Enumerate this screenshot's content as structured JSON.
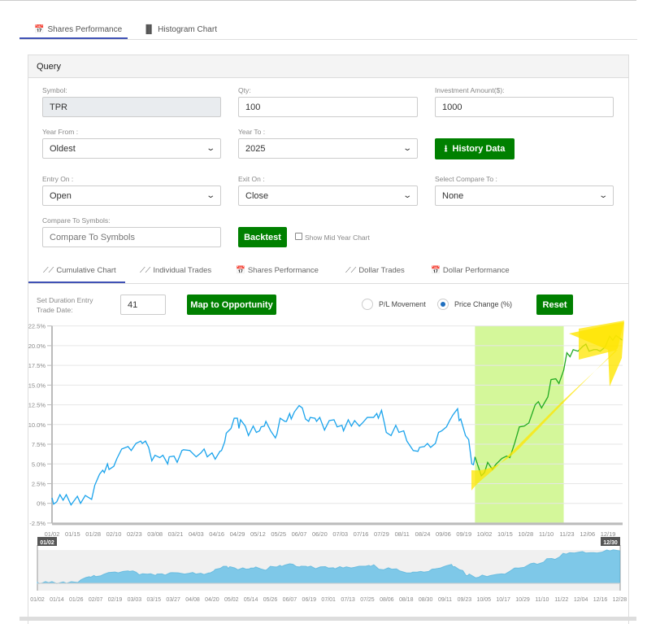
{
  "top_tabs": [
    {
      "label": "Shares Performance",
      "icon": "calendar-icon",
      "active": true
    },
    {
      "label": "Histogram Chart",
      "icon": "bar-chart-icon",
      "active": false
    }
  ],
  "query": {
    "title": "Query",
    "symbol": {
      "label": "Symbol:",
      "value": "TPR"
    },
    "qty": {
      "label": "Qty:",
      "value": "100"
    },
    "investment": {
      "label": "Investment Amount($):",
      "value": "1000"
    },
    "year_from": {
      "label": "Year From :",
      "value": "Oldest"
    },
    "year_to": {
      "label": "Year To :",
      "value": "2025"
    },
    "history_button": "History Data",
    "entry_on": {
      "label": "Entry On :",
      "value": "Open"
    },
    "exit_on": {
      "label": "Exit On :",
      "value": "Close"
    },
    "compare_to": {
      "label": "Select Compare To :",
      "value": "None"
    },
    "compare_symbols": {
      "label": "Compare To Symbols:",
      "placeholder": "Compare To Symbols"
    },
    "backtest_button": "Backtest",
    "mid_year_checkbox": {
      "label": "Show Mid Year Chart",
      "checked": false
    }
  },
  "chart_tabs": [
    {
      "label": "Cumulative Chart",
      "icon": "line-chart-icon",
      "active": true
    },
    {
      "label": "Individual Trades",
      "icon": "line-chart-icon"
    },
    {
      "label": "Shares Performance",
      "icon": "calendar-icon"
    },
    {
      "label": "Dollar Trades",
      "icon": "line-chart-icon"
    },
    {
      "label": "Dollar Performance",
      "icon": "calendar-icon"
    }
  ],
  "controls": {
    "duration_label_1": "Set Duration Entry",
    "duration_label_2": "Trade Date:",
    "duration_value": "41",
    "map_button": "Map to Opportunity",
    "radio_pl": "P/L Movement",
    "radio_price": "Price Change (%)",
    "selected": "Price Change (%)",
    "reset_button": "Reset"
  },
  "chart_data": {
    "type": "line",
    "year": 2025,
    "yticks": [
      "22.5%",
      "20.0%",
      "17.5%",
      "15.0%",
      "12.5%",
      "10.0%",
      "7.5%",
      "5.0%",
      "2.5%",
      "0%",
      "-2.5%"
    ],
    "ylim": [
      -2.5,
      22.5
    ],
    "xticks": [
      "01/02",
      "01/15",
      "01/28",
      "02/10",
      "02/23",
      "03/08",
      "03/21",
      "04/03",
      "04/16",
      "04/29",
      "05/12",
      "05/25",
      "06/07",
      "06/20",
      "07/03",
      "07/16",
      "07/29",
      "08/11",
      "08/24",
      "09/06",
      "09/19",
      "10/02",
      "10/15",
      "10/28",
      "11/10",
      "11/23",
      "12/06",
      "12/19"
    ],
    "navigator_ticks": [
      "01/02",
      "01/14",
      "01/26",
      "02/07",
      "02/19",
      "03/03",
      "03/15",
      "03/27",
      "04/08",
      "04/20",
      "05/02",
      "05/14",
      "05/26",
      "06/07",
      "06/19",
      "07/01",
      "07/13",
      "07/25",
      "08/06",
      "08/18",
      "08/30",
      "09/11",
      "09/23",
      "10/05",
      "10/17",
      "10/29",
      "11/10",
      "11/22",
      "12/04",
      "12/16",
      "12/28"
    ],
    "navigator_range": [
      "01/02",
      "12/30"
    ],
    "highlight_range": [
      "09/26",
      "11/21"
    ],
    "colors": {
      "line": "#1aa3ec",
      "highlight_line": "#22aa22",
      "highlight_band": "#d4f79a",
      "arrow": "#ffe600",
      "area": "#7ec8e8"
    },
    "series": [
      [
        "01/02",
        0.7
      ],
      [
        "01/03",
        -0.1
      ],
      [
        "01/05",
        0.2
      ],
      [
        "01/07",
        1.1
      ],
      [
        "01/09",
        0.4
      ],
      [
        "01/11",
        1.1
      ],
      [
        "01/14",
        -0.2
      ],
      [
        "01/18",
        0.9
      ],
      [
        "01/20",
        0
      ],
      [
        "01/23",
        1.0
      ],
      [
        "01/27",
        0.5
      ],
      [
        "01/29",
        2.3
      ],
      [
        "02/01",
        3.7
      ],
      [
        "02/03",
        4.2
      ],
      [
        "02/04",
        3.9
      ],
      [
        "02/06",
        5.0
      ],
      [
        "02/07",
        4.3
      ],
      [
        "02/10",
        4.7
      ],
      [
        "02/12",
        5.7
      ],
      [
        "02/15",
        6.9
      ],
      [
        "02/19",
        7.2
      ],
      [
        "02/21",
        6.7
      ],
      [
        "02/24",
        7.6
      ],
      [
        "02/27",
        7.9
      ],
      [
        "02/28",
        7.6
      ],
      [
        "03/02",
        7.9
      ],
      [
        "03/04",
        7.1
      ],
      [
        "03/06",
        5.4
      ],
      [
        "03/08",
        6.1
      ],
      [
        "03/11",
        5.8
      ],
      [
        "03/13",
        6.1
      ],
      [
        "03/16",
        5.0
      ],
      [
        "03/17",
        5.9
      ],
      [
        "03/20",
        6.0
      ],
      [
        "03/22",
        5.2
      ],
      [
        "03/25",
        6.7
      ],
      [
        "03/26",
        6.8
      ],
      [
        "03/30",
        6.7
      ],
      [
        "04/03",
        5.9
      ],
      [
        "04/06",
        6.4
      ],
      [
        "04/08",
        6.9
      ],
      [
        "04/10",
        5.9
      ],
      [
        "04/13",
        6.4
      ],
      [
        "04/15",
        5.6
      ],
      [
        "04/18",
        6.6
      ],
      [
        "04/19",
        6.7
      ],
      [
        "04/21",
        7.8
      ],
      [
        "04/22",
        8.9
      ],
      [
        "04/25",
        9.5
      ],
      [
        "04/27",
        10.8
      ],
      [
        "04/29",
        10.8
      ],
      [
        "04/30",
        9.5
      ],
      [
        "05/01",
        10.6
      ],
      [
        "05/04",
        9.8
      ],
      [
        "05/06",
        8.6
      ],
      [
        "05/09",
        9.8
      ],
      [
        "05/11",
        9.0
      ],
      [
        "05/13",
        9.2
      ],
      [
        "05/14",
        9.7
      ],
      [
        "05/16",
        9.8
      ],
      [
        "05/17",
        10.4
      ],
      [
        "05/20",
        9.2
      ],
      [
        "05/23",
        8.3
      ],
      [
        "05/24",
        8.8
      ],
      [
        "05/26",
        10.8
      ],
      [
        "05/29",
        10.4
      ],
      [
        "05/30",
        10.4
      ],
      [
        "06/01",
        11.4
      ],
      [
        "06/02",
        10.7
      ],
      [
        "06/04",
        11.6
      ],
      [
        "06/07",
        12.4
      ],
      [
        "06/09",
        12.1
      ],
      [
        "06/11",
        10.7
      ],
      [
        "06/13",
        10.4
      ],
      [
        "06/14",
        10.9
      ],
      [
        "06/17",
        10.8
      ],
      [
        "06/18",
        10.4
      ],
      [
        "06/20",
        10.9
      ],
      [
        "06/23",
        9.3
      ],
      [
        "06/26",
        10.5
      ],
      [
        "06/29",
        10.6
      ],
      [
        "07/01",
        9.7
      ],
      [
        "07/04",
        9.9
      ],
      [
        "07/05",
        9.2
      ],
      [
        "07/08",
        10.6
      ],
      [
        "07/10",
        9.8
      ],
      [
        "07/12",
        10.5
      ],
      [
        "07/15",
        9.8
      ],
      [
        "07/17",
        10.2
      ],
      [
        "07/20",
        10.9
      ],
      [
        "07/24",
        10.9
      ],
      [
        "07/26",
        11.4
      ],
      [
        "07/27",
        10.8
      ],
      [
        "07/29",
        11.8
      ],
      [
        "07/31",
        10.0
      ],
      [
        "08/01",
        9.0
      ],
      [
        "08/04",
        8.6
      ],
      [
        "08/07",
        9.9
      ],
      [
        "08/09",
        9.0
      ],
      [
        "08/12",
        9.2
      ],
      [
        "08/14",
        7.9
      ],
      [
        "08/18",
        6.7
      ],
      [
        "08/21",
        6.6
      ],
      [
        "08/22",
        7.1
      ],
      [
        "08/25",
        7.2
      ],
      [
        "08/27",
        7.6
      ],
      [
        "08/29",
        7.1
      ],
      [
        "09/01",
        7.6
      ],
      [
        "09/03",
        9.0
      ],
      [
        "09/05",
        9.2
      ],
      [
        "09/08",
        9.7
      ],
      [
        "09/10",
        10.5
      ],
      [
        "09/12",
        11.2
      ],
      [
        "09/15",
        12.0
      ],
      [
        "09/16",
        10.5
      ],
      [
        "09/17",
        10.7
      ],
      [
        "09/20",
        8.6
      ],
      [
        "09/22",
        8.1
      ],
      [
        "09/24",
        5.0
      ],
      [
        "09/25",
        4.9
      ],
      [
        "09/26",
        5.9
      ],
      [
        "09/30",
        3.5
      ],
      [
        "10/02",
        3.9
      ],
      [
        "10/04",
        5.2
      ],
      [
        "10/07",
        4.3
      ],
      [
        "10/09",
        4.9
      ],
      [
        "10/13",
        5.7
      ],
      [
        "10/16",
        6.0
      ],
      [
        "10/18",
        5.8
      ],
      [
        "10/21",
        7.6
      ],
      [
        "10/24",
        9.7
      ],
      [
        "10/27",
        9.8
      ],
      [
        "10/30",
        10.2
      ],
      [
        "11/03",
        12.5
      ],
      [
        "11/05",
        12.9
      ],
      [
        "11/07",
        12.1
      ],
      [
        "11/11",
        13.5
      ],
      [
        "11/13",
        15.7
      ],
      [
        "11/16",
        15.8
      ],
      [
        "11/18",
        15.2
      ],
      [
        "11/21",
        16.9
      ],
      [
        "11/23",
        19.1
      ],
      [
        "11/25",
        18.6
      ],
      [
        "11/27",
        19.5
      ],
      [
        "11/30",
        19.3
      ],
      [
        "12/03",
        19.9
      ],
      [
        "12/05",
        20.2
      ],
      [
        "12/07",
        19.3
      ],
      [
        "12/10",
        19.5
      ],
      [
        "12/12",
        19.5
      ],
      [
        "12/14",
        19.3
      ],
      [
        "12/17",
        19.8
      ],
      [
        "12/20",
        21.2
      ],
      [
        "12/22",
        20.7
      ],
      [
        "12/24",
        21.3
      ],
      [
        "12/28",
        20.7
      ]
    ]
  }
}
